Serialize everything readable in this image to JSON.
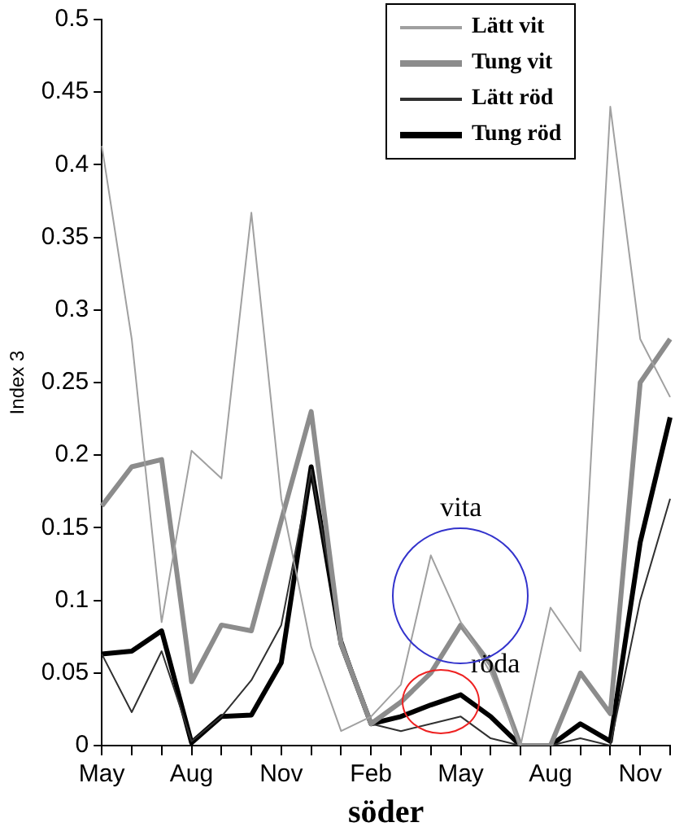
{
  "chart_data": {
    "type": "line",
    "xlabel": "söder",
    "ylabel": "Index 3",
    "categories": [
      "May",
      null,
      null,
      "Aug",
      null,
      null,
      "Nov",
      null,
      null,
      "Feb",
      null,
      null,
      "May",
      null,
      null,
      "Aug",
      null,
      null,
      "Nov",
      null
    ],
    "ylim": [
      0,
      0.5
    ],
    "yticks": [
      0,
      0.05,
      0.1,
      0.15,
      0.2,
      0.25,
      0.3,
      0.35,
      0.4,
      0.45,
      0.5
    ],
    "series": [
      {
        "name": "Lätt vit",
        "color": "#a0a0a0",
        "values": [
          0.413,
          0.28,
          0.085,
          0.203,
          0.184,
          0.367,
          0.17,
          0.068,
          0.01,
          0.02,
          0.042,
          0.131,
          0.085,
          0.05,
          0,
          0.095,
          0.065,
          0.44,
          0.28,
          0.24
        ]
      },
      {
        "name": "Tung vit",
        "color": "#8c8c8c",
        "values": [
          0.165,
          0.192,
          0.197,
          0.044,
          0.083,
          0.079,
          0.155,
          0.23,
          0.07,
          0.015,
          0.03,
          0.05,
          0.083,
          0.056,
          0,
          0,
          0.05,
          0.022,
          0.25,
          0.28
        ]
      },
      {
        "name": "Lätt röd",
        "color": "#303030",
        "values": [
          0.063,
          0.023,
          0.065,
          0.003,
          0.02,
          0.045,
          0.083,
          0.19,
          0.075,
          0.015,
          0.01,
          0.015,
          0.02,
          0.005,
          0,
          0,
          0.005,
          0,
          0.1,
          0.17
        ]
      },
      {
        "name": "Tung röd",
        "color": "#000000",
        "values": [
          0.063,
          0.065,
          0.079,
          0.002,
          0.02,
          0.021,
          0.057,
          0.192,
          0.07,
          0.015,
          0.02,
          0.028,
          0.035,
          0.02,
          0,
          0,
          0.015,
          0.003,
          0.14,
          0.226
        ]
      }
    ],
    "annotations": [
      "vita",
      "röda"
    ],
    "legend": "top right",
    "grid": false,
    "marker": "none",
    "line_style": "solid"
  }
}
